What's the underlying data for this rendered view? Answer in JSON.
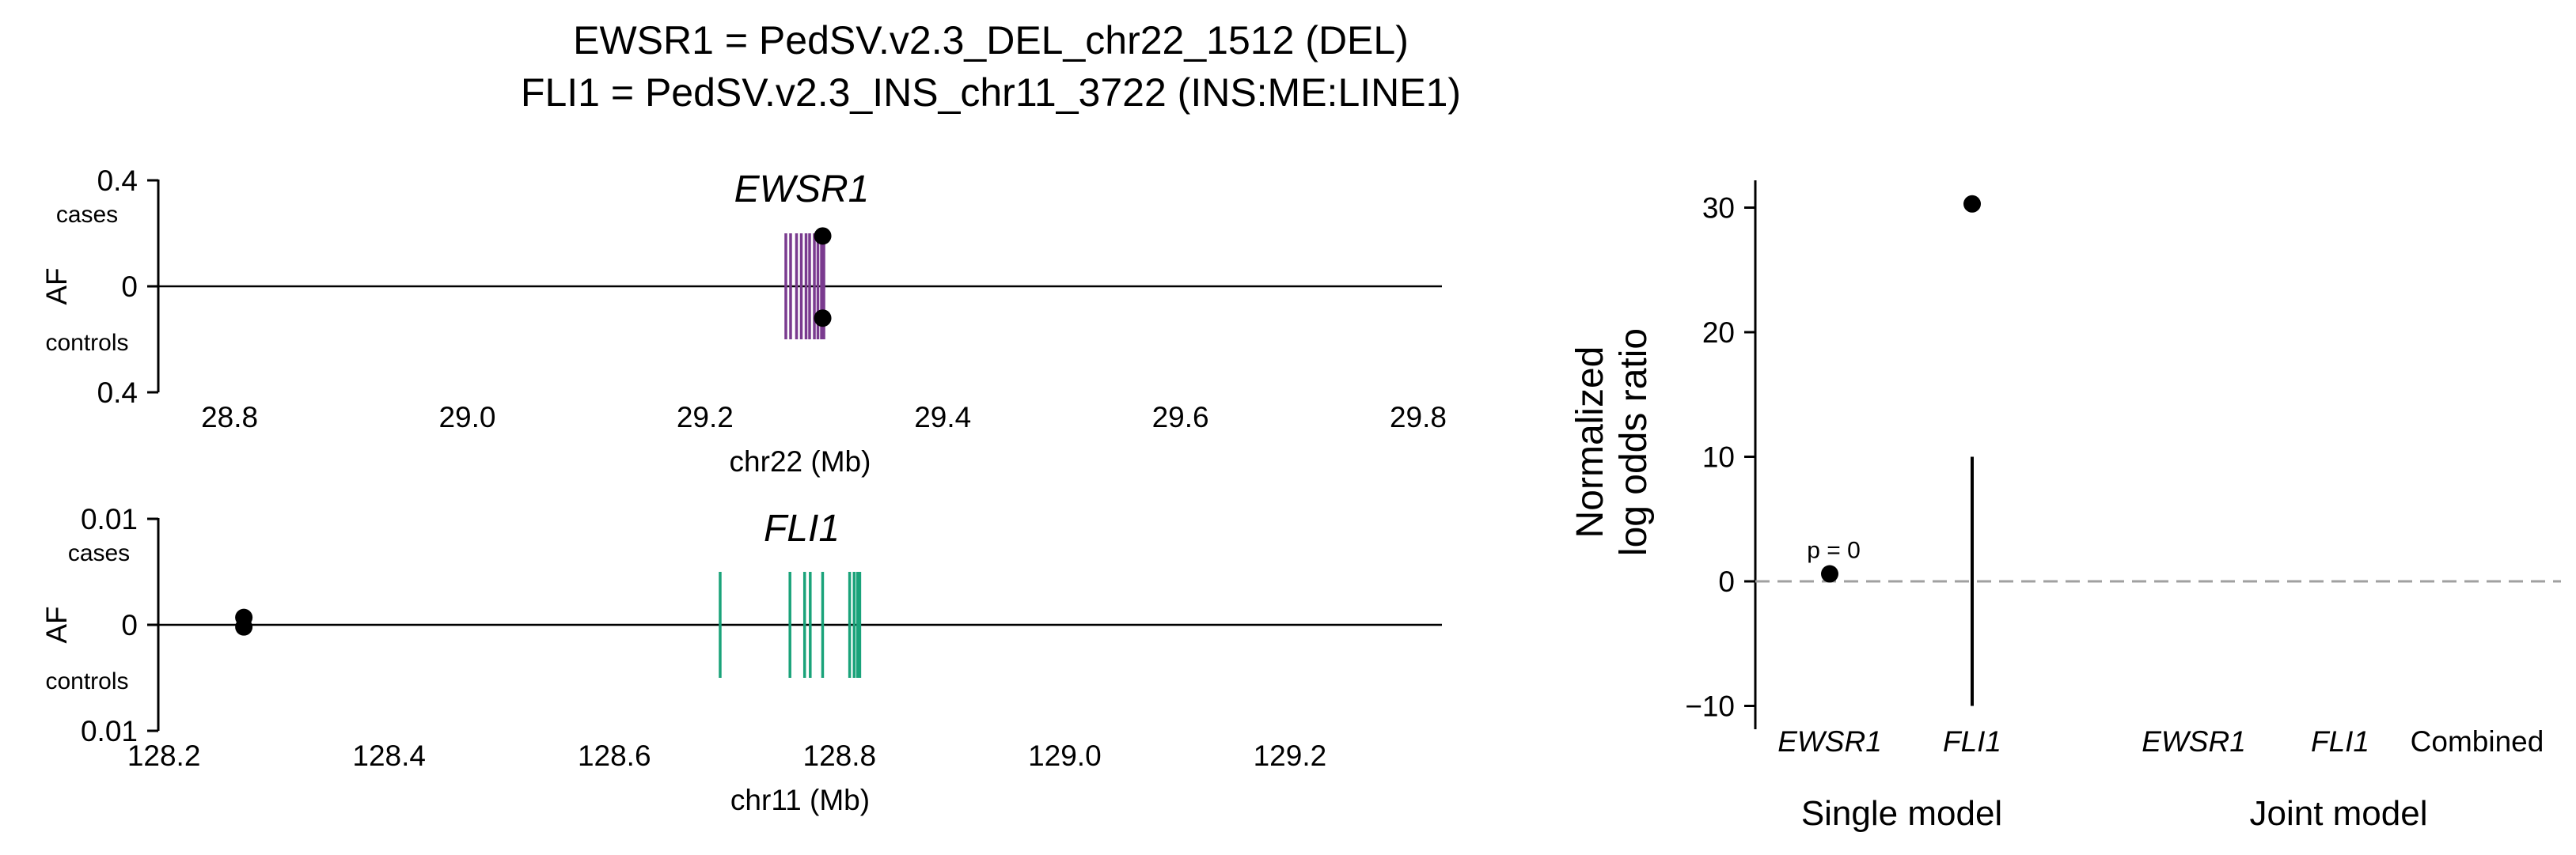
{
  "title_lines": [
    "EWSR1 = PedSV.v2.3_DEL_chr22_1512 (DEL)",
    "FLI1 = PedSV.v2.3_INS_chr11_3722 (INS:ME:LINE1)"
  ],
  "chart_data": [
    {
      "type": "scatter",
      "panel": "top-left",
      "title": "EWSR1",
      "xlabel": "chr22 (Mb)",
      "ylabel": "AF",
      "upper_label": "cases",
      "lower_label": "controls",
      "xlim": [
        28.74,
        29.82
      ],
      "ylim": [
        -0.4,
        0.4
      ],
      "x_ticks": [
        "28.8",
        "29.0",
        "29.2",
        "29.4",
        "29.6",
        "29.8"
      ],
      "x_tick_values": [
        28.8,
        29.0,
        29.2,
        29.4,
        29.6,
        29.8
      ],
      "y_ticks": [
        "0.4",
        "0",
        "0.4"
      ],
      "y_tick_values": [
        0.4,
        0.0,
        -0.4
      ],
      "gene_color": "#7a3b8f",
      "exons_mb": [
        29.268,
        29.272,
        29.277,
        29.281,
        29.285,
        29.288,
        29.292,
        29.295,
        29.298,
        29.3
      ],
      "exon_half_height_af": 0.2,
      "points": [
        {
          "x": 29.299,
          "af": 0.19
        },
        {
          "x": 29.299,
          "af": -0.12
        }
      ]
    },
    {
      "type": "scatter",
      "panel": "bottom-left",
      "title": "FLI1",
      "xlabel": "chr11 (Mb)",
      "ylabel": "AF",
      "upper_label": "cases",
      "lower_label": "controls",
      "xlim": [
        128.195,
        129.335
      ],
      "ylim": [
        -0.01,
        0.01
      ],
      "x_ticks": [
        "128.2",
        "128.4",
        "128.6",
        "128.8",
        "129.0",
        "129.2"
      ],
      "x_tick_values": [
        128.2,
        128.4,
        128.6,
        128.8,
        129.0,
        129.2
      ],
      "y_ticks": [
        "0.01",
        "0",
        "0.01"
      ],
      "y_tick_values": [
        0.01,
        0.0,
        -0.01
      ],
      "gene_color": "#1aa37a",
      "exons_mb": [
        128.694,
        128.756,
        128.769,
        128.774,
        128.785,
        128.809,
        128.813,
        128.816,
        128.818
      ],
      "exon_half_height_af": 0.005,
      "points": [
        {
          "x": 128.271,
          "af": 0.0007
        },
        {
          "x": 128.271,
          "af": -0.0002
        }
      ]
    },
    {
      "type": "scatter",
      "panel": "right",
      "ylabel_lines": [
        "Normalized",
        "log odds ratio"
      ],
      "ylim": [
        -11.5,
        32
      ],
      "y_ticks": [
        "30",
        "20",
        "10",
        "0",
        "−10"
      ],
      "y_tick_values": [
        30,
        20,
        10,
        0,
        -10
      ],
      "categories": [
        "EWSR1",
        "FLI1",
        "EWSR1",
        "FLI1",
        "Combined"
      ],
      "category_italic": [
        true,
        true,
        true,
        true,
        false
      ],
      "groups": [
        "Single model",
        "Joint model"
      ],
      "reference_line": {
        "y": 0,
        "style": "dashed",
        "color": "#a0a0a0"
      },
      "points": [
        {
          "category": 0,
          "y": 0.6,
          "ci": null,
          "annotation": "p = 0"
        },
        {
          "category": 1,
          "y": 30.3,
          "ci": [
            -10,
            10
          ],
          "annotation": ""
        }
      ]
    }
  ]
}
